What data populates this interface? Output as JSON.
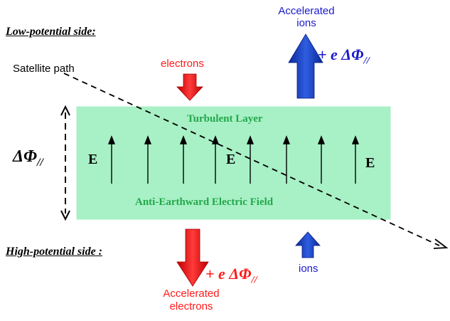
{
  "labels": {
    "low_side": "Low-potential side:",
    "high_side": "High-potential side :",
    "satellite_path": "Satellite  path",
    "electrons_in": "electrons",
    "ions_in": "ions",
    "accel_ions_line1": "Accelerated",
    "accel_ions_line2": "ions",
    "accel_electrons_line1": "Accelerated",
    "accel_electrons_line2": "electrons",
    "energy_gain": "+ e ΔΦ",
    "energy_gain_sub": "//",
    "potential_drop": "ΔΦ",
    "potential_drop_sub": "//",
    "turbulent_layer": "Turbulent Layer",
    "field_label": "Anti-Earthward Electric Field",
    "E_symbol": "E"
  },
  "colors": {
    "layer_fill": "#a8f0c6",
    "red": "#ff1a1a",
    "blue": "#1a1acc",
    "green_text": "#22a84a"
  }
}
